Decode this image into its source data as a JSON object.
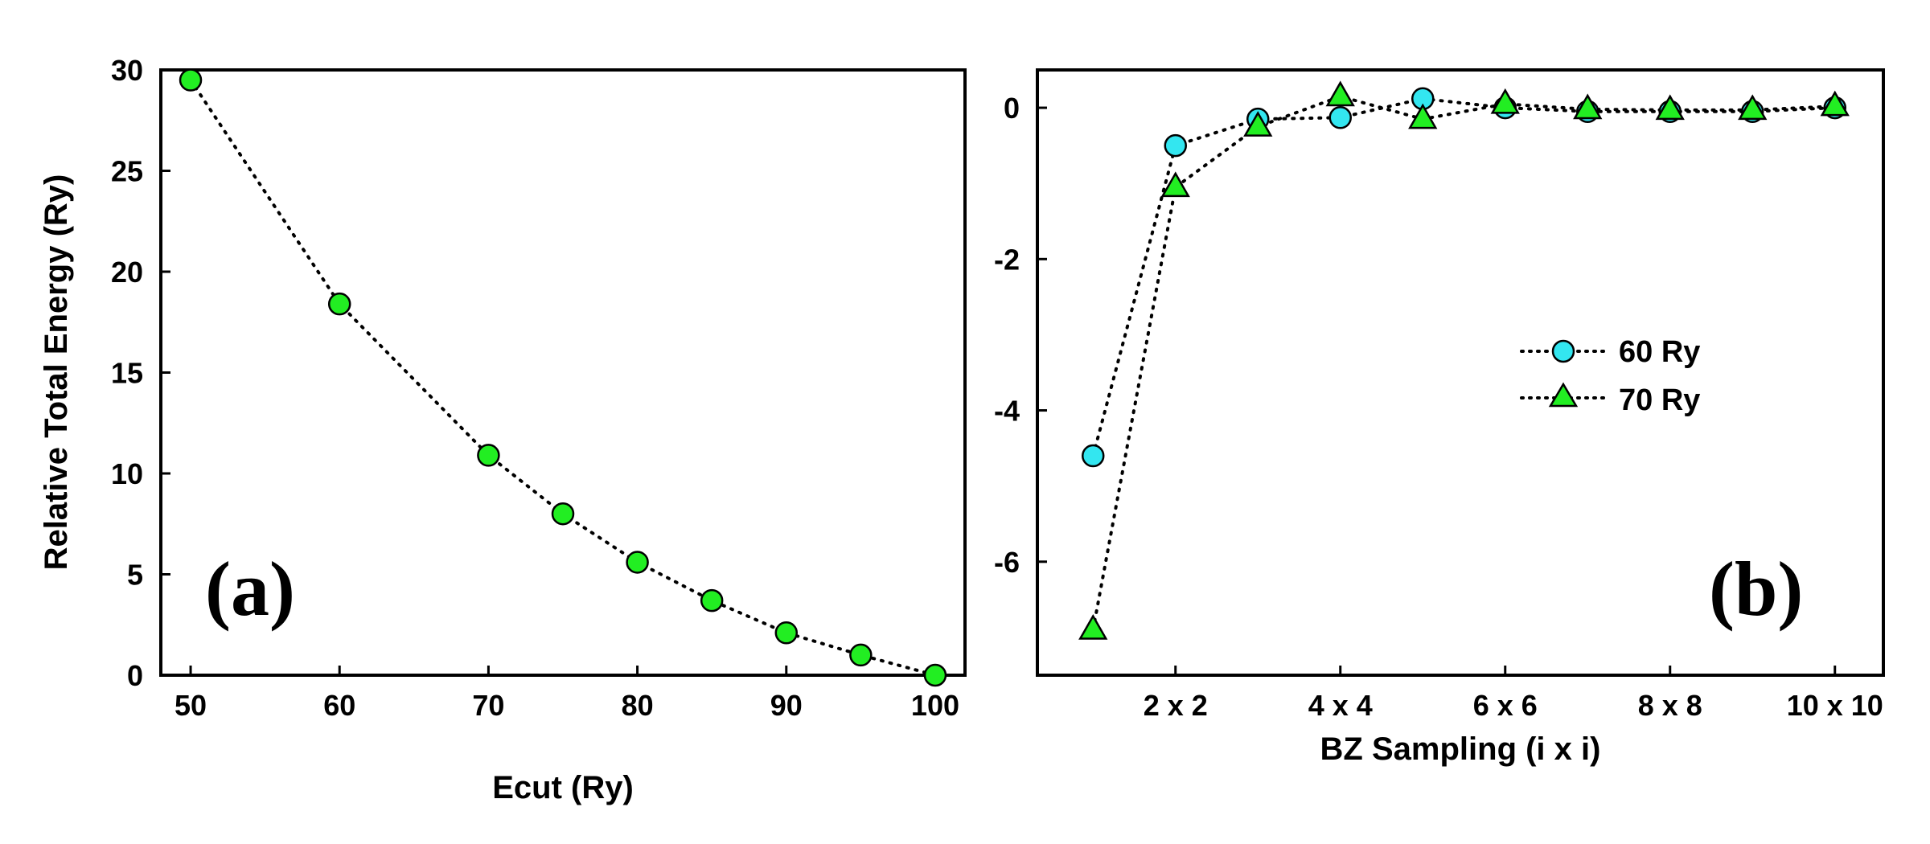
{
  "chart_data": [
    {
      "type": "scatter",
      "panel_label": "(a)",
      "xlabel": "Ecut (Ry)",
      "ylabel": "Relative Total Energy (Ry)",
      "xlim": [
        48,
        102
      ],
      "ylim": [
        0,
        30
      ],
      "xticks": [
        50,
        60,
        70,
        80,
        90,
        100
      ],
      "yticks": [
        0,
        5,
        10,
        15,
        20,
        25,
        30
      ],
      "grid": false,
      "line_style": "dotted",
      "marker_color": "#22ee22",
      "series": [
        {
          "marker": "circle",
          "x": [
            50,
            60,
            70,
            75,
            80,
            85,
            90,
            95,
            100
          ],
          "y": [
            29.5,
            18.4,
            10.9,
            8.0,
            5.6,
            3.7,
            2.1,
            1.0,
            0.0
          ]
        }
      ]
    },
    {
      "type": "scatter",
      "panel_label": "(b)",
      "xlabel": "BZ Sampling (i x i)",
      "ylabel": "",
      "xlim": [
        0.5,
        10.5
      ],
      "ylim": [
        -7.5,
        0.5
      ],
      "xticks": [
        2,
        4,
        6,
        8,
        10
      ],
      "xticklabels": [
        "2 x 2",
        "4 x 4",
        "6 x 6",
        "8 x 8",
        "10 x 10"
      ],
      "yticks": [
        -6,
        -4,
        -2,
        0
      ],
      "grid": false,
      "legend_position": "center-right",
      "series": [
        {
          "name": "60 Ry",
          "marker": "circle",
          "color": "#33e6f0",
          "x": [
            1,
            2,
            3,
            4,
            5,
            6,
            7,
            8,
            9,
            10
          ],
          "y": [
            -4.6,
            -0.5,
            -0.15,
            -0.13,
            0.12,
            0.0,
            -0.05,
            -0.05,
            -0.05,
            0.0
          ]
        },
        {
          "name": "70 Ry",
          "marker": "triangle",
          "color": "#22ee22",
          "x": [
            1,
            2,
            3,
            4,
            5,
            6,
            7,
            8,
            9,
            10
          ],
          "y": [
            -6.9,
            -1.05,
            -0.25,
            0.15,
            -0.15,
            0.05,
            -0.02,
            -0.03,
            -0.03,
            0.02
          ]
        }
      ]
    }
  ]
}
